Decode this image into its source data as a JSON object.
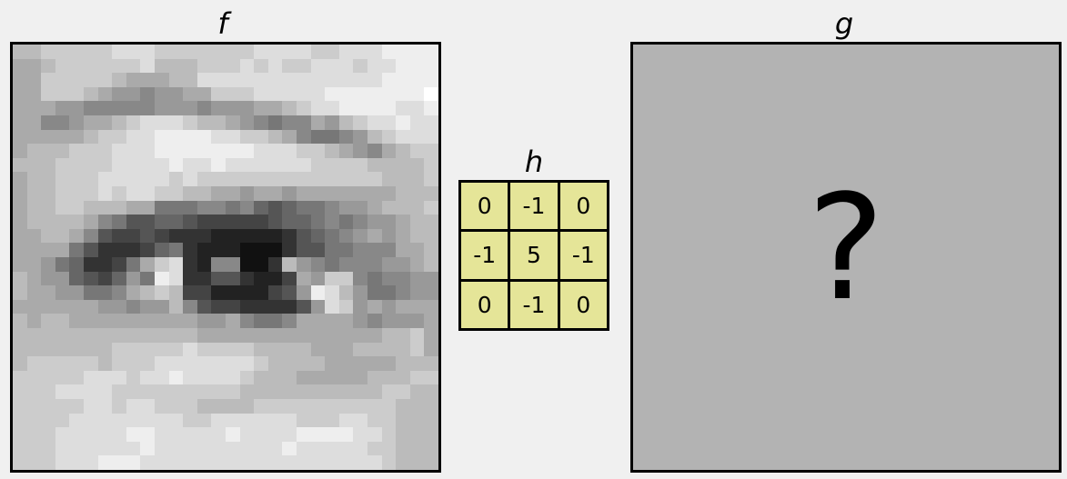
{
  "labels": {
    "f": "f",
    "h": "h",
    "g": "g"
  },
  "kernel": {
    "values": [
      "0",
      "-1",
      "0",
      "-1",
      "5",
      "-1",
      "0",
      "-1",
      "0"
    ],
    "cell_color": "#e5e598"
  },
  "output": {
    "text": "?",
    "fill_color": "#b3b3b3"
  },
  "image_pixels": [
    "bbcccccdddcccccccddddccdddeeee",
    "aabccccccdbbbcccdcdccdddcddeee",
    "aacccccbaaabbdddddddddddddeeee",
    "aacccba99899aacccdddddeeeeeeef",
    "aaa99888889998999aabcddeeeedde",
    "aa889aabcdddcbba98788a9bcddedd",
    "aaaaabccddeeeeddccba87789bcddd",
    "abbbcccdddeeeeeeedddccba98abcc",
    "bbbccccddddeddeddddddccccbbbbc",
    "abbcccdddddcdcccccccccccccbbbc",
    "abbcccdcddccbbaa9aa9aaaaaaabbb",
    "abbccbbbaa777887865677899abbbc",
    "abbbba875566544444566787899abb",
    "aabba85445433322222356789a9abb",
    "aaaa75333467322211135577888aab",
    "aa9763347acd3288113b98788899ab",
    "ba99654697ed33553224a9cc878899",
    "baa99778abcb442222459edb977899",
    "aaaaaa99899b8544333359dc9a9aaa",
    "babbaaaaaaaaa99a8778aaaa98999a",
    "bbbbbbbbbbbbbaaaaaaaaaaaaabbca",
    "bbbbbbbcccccdccccbbbbaaabbbbca",
    "bcccccbcccdddddddcbbbbaaaaabbb",
    "cccccdddcddeddddcbbbaaaaabbbcc",
    "cccddddcccccccccbbbbbbbbbbccbb",
    "cccccddcddcccbbbbccccccccccbbb",
    "ccccddddddddccddddddcccddccbbb",
    "cccdddddeedddddeddddeeeeddcbbb",
    "cccddddddedddddddddedddddccbbb",
    "cccdddeeedddddddddddddddddcbbb"
  ]
}
